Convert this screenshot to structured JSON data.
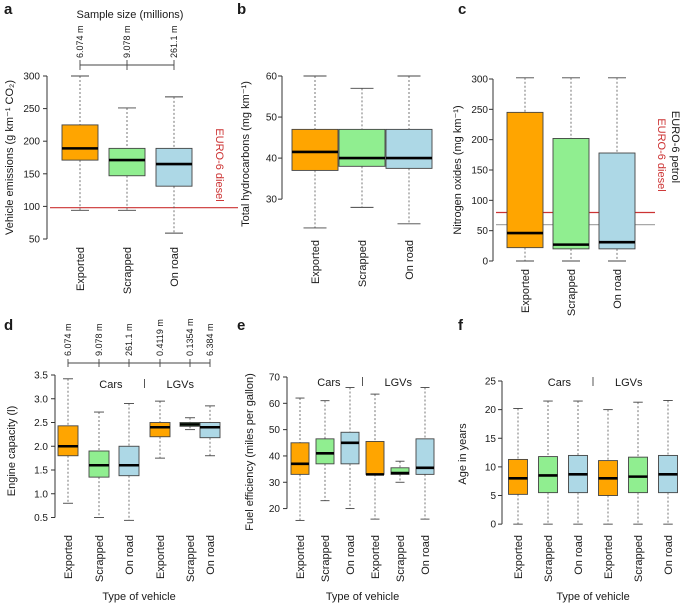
{
  "colors": {
    "exported": "#FFA500",
    "scrapped": "#90EE90",
    "onroad": "#ADD8E6",
    "reference": "#CC3333",
    "reference_grey": "#A8A8A8"
  },
  "xlabel_bottom": "Type of vehicle",
  "chart_data": [
    {
      "panel": "a",
      "type": "box",
      "ylabel": "Vehicle emissions (g km⁻¹ CO₂)",
      "ylim": [
        50,
        300
      ],
      "yticks": [
        50,
        100,
        150,
        200,
        250,
        300
      ],
      "categories": [
        "Exported",
        "Scrapped",
        "On road"
      ],
      "header": "Sample size (millions)",
      "sample_sizes": [
        "6.074 m",
        "9.078 m",
        "261.1 m"
      ],
      "boxes": [
        {
          "min": 94,
          "q1": 171,
          "median": 189,
          "q3": 225,
          "max": 300
        },
        {
          "min": 94,
          "q1": 147,
          "median": 171,
          "q3": 189,
          "max": 251
        },
        {
          "min": 59,
          "q1": 131,
          "median": 165,
          "q3": 189,
          "max": 268
        }
      ],
      "reference_lines": [
        {
          "value": 98,
          "label": "EURO-6 diesel",
          "color": "#CC3333"
        }
      ]
    },
    {
      "panel": "b",
      "type": "box",
      "ylabel": "Total hydrocarbons (mg km⁻¹)",
      "ylim": [
        22,
        60
      ],
      "yticks": [
        30,
        40,
        50,
        60
      ],
      "categories": [
        "Exported",
        "Scrapped",
        "On road"
      ],
      "boxes": [
        {
          "min": 23,
          "q1": 37,
          "median": 41.5,
          "q3": 47,
          "max": 60
        },
        {
          "min": 28,
          "q1": 38,
          "median": 40,
          "q3": 47,
          "max": 57
        },
        {
          "min": 24,
          "q1": 37.5,
          "median": 40,
          "q3": 47,
          "max": 60
        }
      ]
    },
    {
      "panel": "c",
      "type": "box",
      "ylabel": "Nitrogen oxides (mg km⁻¹)",
      "ylim": [
        0,
        300
      ],
      "yticks": [
        0,
        50,
        100,
        150,
        200,
        250,
        300
      ],
      "categories": [
        "Exported",
        "Scrapped",
        "On road"
      ],
      "boxes": [
        {
          "min": 0,
          "q1": 22,
          "median": 46,
          "q3": 245,
          "max": 302
        },
        {
          "min": 0,
          "q1": 20,
          "median": 27,
          "q3": 202,
          "max": 302
        },
        {
          "min": 0,
          "q1": 20,
          "median": 31,
          "q3": 178,
          "max": 302
        }
      ],
      "reference_lines": [
        {
          "value": 80,
          "label": "EURO-6 diesel",
          "color": "#CC3333"
        },
        {
          "value": 60,
          "label": "EURO-6 petrol",
          "color": "#A8A8A8"
        }
      ]
    },
    {
      "panel": "d",
      "type": "box",
      "ylabel": "Engine capacity (l)",
      "ylim": [
        0.3,
        3.5
      ],
      "yticks": [
        0.5,
        1.0,
        1.5,
        2.0,
        2.5,
        3.0,
        3.5
      ],
      "categories": [
        "Exported",
        "Scrapped",
        "On road",
        "Exported",
        "Scrapped",
        "On road"
      ],
      "groups": [
        "Cars",
        "LGVs"
      ],
      "sample_sizes": [
        "6.074 m",
        "9.078 m",
        "261.1 m",
        "0.4119 m",
        "0.1354 m",
        "6.384 m"
      ],
      "boxes": [
        {
          "min": 0.8,
          "q1": 1.8,
          "median": 2.0,
          "q3": 2.43,
          "max": 3.42
        },
        {
          "min": 0.5,
          "q1": 1.35,
          "median": 1.6,
          "q3": 1.9,
          "max": 2.72
        },
        {
          "min": 0.44,
          "q1": 1.38,
          "median": 1.6,
          "q3": 2.0,
          "max": 2.9
        },
        {
          "min": 1.75,
          "q1": 2.2,
          "median": 2.4,
          "q3": 2.5,
          "max": 2.95
        },
        {
          "min": 2.35,
          "q1": 2.42,
          "median": 2.46,
          "q3": 2.5,
          "max": 2.6
        },
        {
          "min": 1.8,
          "q1": 2.18,
          "median": 2.4,
          "q3": 2.5,
          "max": 2.85
        }
      ]
    },
    {
      "panel": "e",
      "type": "box",
      "ylabel": "Fuel efficiency (miles per gallon)",
      "ylim": [
        13,
        70
      ],
      "yticks": [
        20,
        30,
        40,
        50,
        60,
        70
      ],
      "categories": [
        "Exported",
        "Scrapped",
        "On road",
        "Exported",
        "Scrapped",
        "On road"
      ],
      "groups": [
        "Cars",
        "LGVs"
      ],
      "boxes": [
        {
          "min": 15.5,
          "q1": 33,
          "median": 37,
          "q3": 45,
          "max": 62
        },
        {
          "min": 23,
          "q1": 37,
          "median": 41,
          "q3": 46.5,
          "max": 61
        },
        {
          "min": 20,
          "q1": 37,
          "median": 45,
          "q3": 49,
          "max": 66
        },
        {
          "min": 16,
          "q1": 33,
          "median": 33,
          "q3": 45.5,
          "max": 63.5
        },
        {
          "min": 30,
          "q1": 33,
          "median": 33.5,
          "q3": 35.5,
          "max": 38
        },
        {
          "min": 16,
          "q1": 33,
          "median": 35.5,
          "q3": 46.5,
          "max": 66
        }
      ]
    },
    {
      "panel": "f",
      "type": "box",
      "ylabel": "Age in years",
      "ylim": [
        -0.5,
        25
      ],
      "yticks": [
        0,
        5,
        10,
        15,
        20,
        25
      ],
      "categories": [
        "Exported",
        "Scrapped",
        "On road",
        "Exported",
        "Scrapped",
        "On road"
      ],
      "groups": [
        "Cars",
        "LGVs"
      ],
      "boxes": [
        {
          "min": 0,
          "q1": 5.2,
          "median": 8.0,
          "q3": 11.3,
          "max": 20.2
        },
        {
          "min": 0,
          "q1": 5.5,
          "median": 8.5,
          "q3": 11.8,
          "max": 21.5
        },
        {
          "min": 0,
          "q1": 5.5,
          "median": 8.7,
          "q3": 12.0,
          "max": 21.5
        },
        {
          "min": 0,
          "q1": 5.0,
          "median": 8.0,
          "q3": 11.1,
          "max": 20.0
        },
        {
          "min": 0,
          "q1": 5.5,
          "median": 8.3,
          "q3": 11.7,
          "max": 21.3
        },
        {
          "min": 0,
          "q1": 5.5,
          "median": 8.7,
          "q3": 12.0,
          "max": 21.6
        }
      ]
    }
  ]
}
